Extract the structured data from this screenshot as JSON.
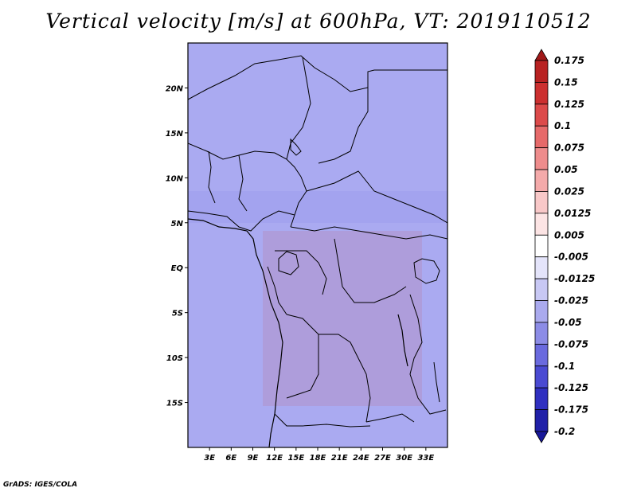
{
  "title": "Vertical velocity [m/s] at 600hPa, VT: 2019110512",
  "credit": "GrADS: IGES/COLA",
  "map": {
    "lon_range": [
      0,
      36
    ],
    "lat_range": [
      -20,
      25
    ],
    "lat_ticks": [
      "20N",
      "15N",
      "10N",
      "5N",
      "EQ",
      "5S",
      "10S",
      "15S"
    ],
    "lat_tick_values": [
      20,
      15,
      10,
      5,
      0,
      -5,
      -10,
      -15
    ],
    "lon_ticks": [
      "3E",
      "6E",
      "9E",
      "12E",
      "15E",
      "18E",
      "21E",
      "24E",
      "27E",
      "30E",
      "33E"
    ],
    "lon_tick_values": [
      3,
      6,
      9,
      12,
      15,
      18,
      21,
      24,
      27,
      30,
      33
    ]
  },
  "colorbar": {
    "labels": [
      "0.175",
      "0.15",
      "0.125",
      "0.1",
      "0.075",
      "0.05",
      "0.025",
      "0.0125",
      "0.005",
      "-0.005",
      "-0.0125",
      "-0.025",
      "-0.05",
      "-0.075",
      "-0.1",
      "-0.125",
      "-0.175",
      "-0.2"
    ],
    "colors": [
      "#a01818",
      "#b82222",
      "#cc3030",
      "#dc4a4a",
      "#e66a6a",
      "#ee8c8c",
      "#f4aaaa",
      "#f8c8c8",
      "#fce4e4",
      "#ffffff",
      "#e4e4fa",
      "#c8c8f4",
      "#aaaaee",
      "#8c8ce6",
      "#6a6ade",
      "#4a4ad2",
      "#3030c0",
      "#2020a8",
      "#18189a"
    ]
  }
}
